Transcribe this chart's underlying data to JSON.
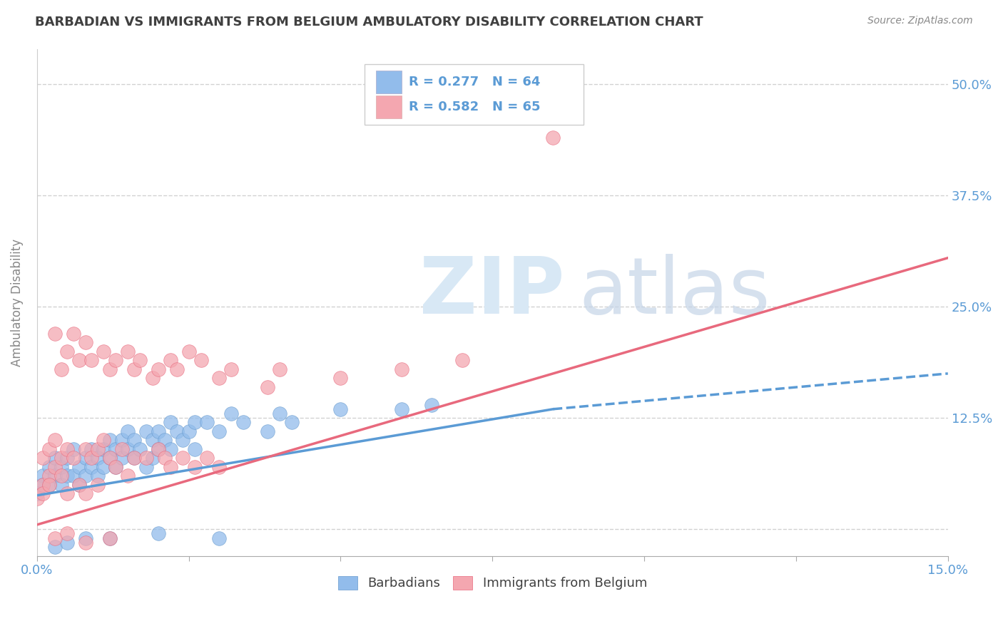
{
  "title": "BARBADIAN VS IMMIGRANTS FROM BELGIUM AMBULATORY DISABILITY CORRELATION CHART",
  "source": "Source: ZipAtlas.com",
  "xlabel": "",
  "ylabel": "Ambulatory Disability",
  "xlim": [
    0.0,
    0.15
  ],
  "ylim": [
    -0.03,
    0.54
  ],
  "ytick_positions": [
    0.0,
    0.125,
    0.25,
    0.375,
    0.5
  ],
  "ytick_labels_right": [
    "",
    "12.5%",
    "25.0%",
    "37.5%",
    "50.0%"
  ],
  "series1_name": "Barbadians",
  "series1_color": "#92BCEB",
  "series1_border": "#6699CC",
  "series2_name": "Immigrants from Belgium",
  "series2_color": "#F4A7B0",
  "series2_border": "#E8697D",
  "legend_R1": "R = 0.277",
  "legend_N1": "N = 64",
  "legend_R2": "R = 0.582",
  "legend_N2": "N = 65",
  "background_color": "#ffffff",
  "grid_color": "#cccccc",
  "title_color": "#404040",
  "axis_label_color": "#5b9bd5",
  "series1_trendline_solid": [
    [
      0.0,
      0.038
    ],
    [
      0.085,
      0.135
    ]
  ],
  "series1_trendline_dashed": [
    [
      0.085,
      0.135
    ],
    [
      0.15,
      0.175
    ]
  ],
  "series2_trendline": [
    [
      0.0,
      0.005
    ],
    [
      0.15,
      0.305
    ]
  ],
  "series1_trendline_color": "#5B9BD5",
  "series2_trendline_color": "#E8697D",
  "series1_scatter": [
    [
      0.0,
      0.04
    ],
    [
      0.001,
      0.06
    ],
    [
      0.001,
      0.05
    ],
    [
      0.002,
      0.07
    ],
    [
      0.002,
      0.05
    ],
    [
      0.003,
      0.06
    ],
    [
      0.003,
      0.08
    ],
    [
      0.004,
      0.05
    ],
    [
      0.004,
      0.07
    ],
    [
      0.005,
      0.06
    ],
    [
      0.005,
      0.08
    ],
    [
      0.006,
      0.06
    ],
    [
      0.006,
      0.09
    ],
    [
      0.007,
      0.07
    ],
    [
      0.007,
      0.05
    ],
    [
      0.008,
      0.08
    ],
    [
      0.008,
      0.06
    ],
    [
      0.009,
      0.07
    ],
    [
      0.009,
      0.09
    ],
    [
      0.01,
      0.08
    ],
    [
      0.01,
      0.06
    ],
    [
      0.011,
      0.09
    ],
    [
      0.011,
      0.07
    ],
    [
      0.012,
      0.08
    ],
    [
      0.012,
      0.1
    ],
    [
      0.013,
      0.09
    ],
    [
      0.013,
      0.07
    ],
    [
      0.014,
      0.1
    ],
    [
      0.014,
      0.08
    ],
    [
      0.015,
      0.09
    ],
    [
      0.015,
      0.11
    ],
    [
      0.016,
      0.1
    ],
    [
      0.016,
      0.08
    ],
    [
      0.017,
      0.09
    ],
    [
      0.018,
      0.11
    ],
    [
      0.018,
      0.07
    ],
    [
      0.019,
      0.1
    ],
    [
      0.019,
      0.08
    ],
    [
      0.02,
      0.11
    ],
    [
      0.02,
      0.09
    ],
    [
      0.021,
      0.1
    ],
    [
      0.022,
      0.12
    ],
    [
      0.022,
      0.09
    ],
    [
      0.023,
      0.11
    ],
    [
      0.024,
      0.1
    ],
    [
      0.025,
      0.11
    ],
    [
      0.026,
      0.12
    ],
    [
      0.026,
      0.09
    ],
    [
      0.028,
      0.12
    ],
    [
      0.03,
      0.11
    ],
    [
      0.032,
      0.13
    ],
    [
      0.034,
      0.12
    ],
    [
      0.038,
      0.11
    ],
    [
      0.04,
      0.13
    ],
    [
      0.042,
      0.12
    ],
    [
      0.05,
      0.135
    ],
    [
      0.06,
      0.135
    ],
    [
      0.065,
      0.14
    ],
    [
      0.003,
      -0.02
    ],
    [
      0.005,
      -0.015
    ],
    [
      0.008,
      -0.01
    ],
    [
      0.012,
      -0.01
    ],
    [
      0.02,
      -0.005
    ],
    [
      0.03,
      -0.01
    ]
  ],
  "series2_scatter": [
    [
      0.0,
      0.035
    ],
    [
      0.001,
      0.05
    ],
    [
      0.001,
      0.08
    ],
    [
      0.001,
      0.04
    ],
    [
      0.002,
      0.06
    ],
    [
      0.002,
      0.09
    ],
    [
      0.002,
      0.05
    ],
    [
      0.003,
      0.07
    ],
    [
      0.003,
      0.1
    ],
    [
      0.003,
      0.22
    ],
    [
      0.004,
      0.08
    ],
    [
      0.004,
      0.06
    ],
    [
      0.004,
      0.18
    ],
    [
      0.005,
      0.09
    ],
    [
      0.005,
      0.2
    ],
    [
      0.005,
      0.04
    ],
    [
      0.006,
      0.08
    ],
    [
      0.006,
      0.22
    ],
    [
      0.007,
      0.05
    ],
    [
      0.007,
      0.19
    ],
    [
      0.008,
      0.09
    ],
    [
      0.008,
      0.21
    ],
    [
      0.008,
      0.04
    ],
    [
      0.009,
      0.08
    ],
    [
      0.009,
      0.19
    ],
    [
      0.01,
      0.09
    ],
    [
      0.01,
      0.05
    ],
    [
      0.011,
      0.1
    ],
    [
      0.011,
      0.2
    ],
    [
      0.012,
      0.18
    ],
    [
      0.012,
      0.08
    ],
    [
      0.013,
      0.19
    ],
    [
      0.013,
      0.07
    ],
    [
      0.014,
      0.09
    ],
    [
      0.015,
      0.2
    ],
    [
      0.015,
      0.06
    ],
    [
      0.016,
      0.18
    ],
    [
      0.016,
      0.08
    ],
    [
      0.017,
      0.19
    ],
    [
      0.018,
      0.08
    ],
    [
      0.019,
      0.17
    ],
    [
      0.02,
      0.09
    ],
    [
      0.02,
      0.18
    ],
    [
      0.021,
      0.08
    ],
    [
      0.022,
      0.19
    ],
    [
      0.022,
      0.07
    ],
    [
      0.023,
      0.18
    ],
    [
      0.024,
      0.08
    ],
    [
      0.025,
      0.2
    ],
    [
      0.026,
      0.07
    ],
    [
      0.027,
      0.19
    ],
    [
      0.028,
      0.08
    ],
    [
      0.03,
      0.17
    ],
    [
      0.03,
      0.07
    ],
    [
      0.032,
      0.18
    ],
    [
      0.038,
      0.16
    ],
    [
      0.04,
      0.18
    ],
    [
      0.05,
      0.17
    ],
    [
      0.06,
      0.18
    ],
    [
      0.07,
      0.19
    ],
    [
      0.003,
      -0.01
    ],
    [
      0.005,
      -0.005
    ],
    [
      0.008,
      -0.015
    ],
    [
      0.012,
      -0.01
    ],
    [
      0.085,
      0.44
    ]
  ]
}
